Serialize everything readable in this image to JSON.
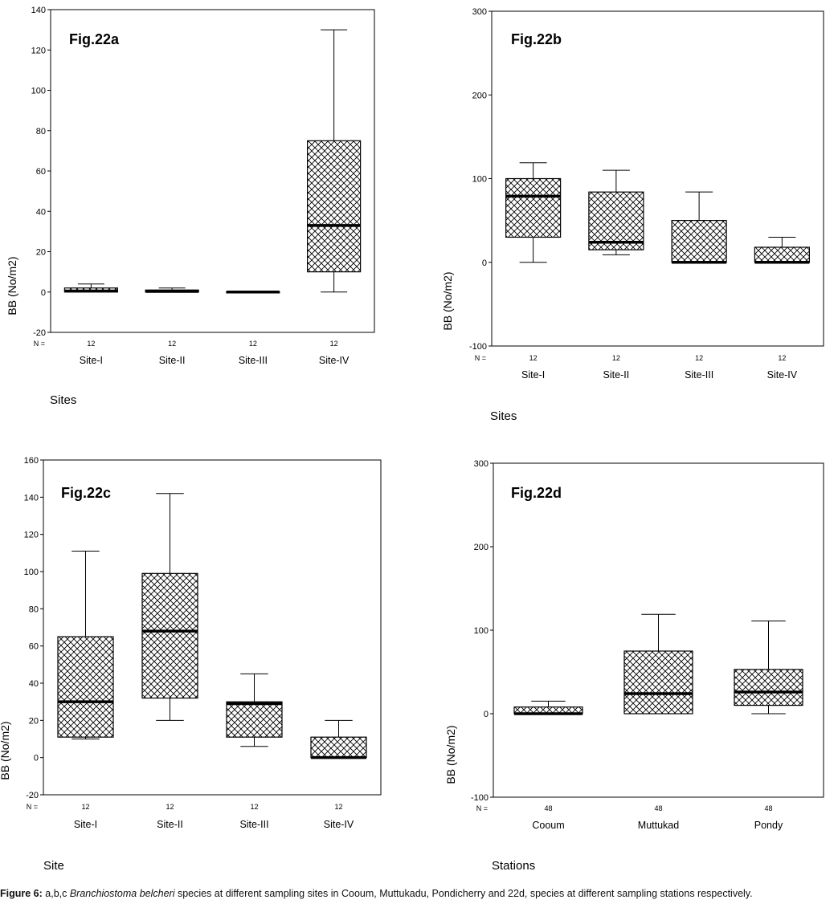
{
  "figure": {
    "caption": {
      "label": "Figure 6:",
      "part1": " a,b,c ",
      "species": "Branchiostoma belcheri",
      "part2": "  species  at different sampling sites in Cooum, Muttukadu, Pondicherry and  22d, species at different sampling stations respectively."
    }
  },
  "colors": {
    "box_fill": "#ffffff",
    "hatch": "#000000",
    "median": "#000000",
    "axis": "#000000"
  },
  "chart_data": [
    {
      "type": "boxplot",
      "title": "Fig.22a",
      "xlabel": "Sites",
      "ylabel": "BB  (No/m2)",
      "n_label": "N =",
      "ylim": [
        -20,
        140
      ],
      "yticks": [
        -20,
        0,
        20,
        40,
        60,
        80,
        100,
        120,
        140
      ],
      "categories": [
        "Site-I",
        "Site-II",
        "Site-III",
        "Site-IV"
      ],
      "n": [
        "12",
        "12",
        "12",
        "12"
      ],
      "boxes": [
        {
          "min": 0,
          "q1": 0,
          "median": 0.5,
          "q3": 2,
          "max": 4
        },
        {
          "min": 0,
          "q1": 0,
          "median": 0.3,
          "q3": 1,
          "max": 2
        },
        {
          "min": 0,
          "q1": 0,
          "median": 0,
          "q3": 0,
          "max": 0
        },
        {
          "min": 0,
          "q1": 10,
          "median": 33,
          "q3": 75,
          "max": 130
        }
      ]
    },
    {
      "type": "boxplot",
      "title": "Fig.22b",
      "xlabel": "Sites",
      "ylabel": "BB  (No/m2)",
      "n_label": "N =",
      "ylim": [
        -100,
        300
      ],
      "yticks": [
        -100,
        0,
        100,
        200,
        300
      ],
      "categories": [
        "Site-I",
        "Site-II",
        "Site-III",
        "Site-IV"
      ],
      "n": [
        "12",
        "12",
        "12",
        "12"
      ],
      "boxes": [
        {
          "min": 0,
          "q1": 30,
          "median": 79,
          "q3": 100,
          "max": 119
        },
        {
          "min": 9,
          "q1": 15,
          "median": 24,
          "q3": 84,
          "max": 110
        },
        {
          "min": 0,
          "q1": 0,
          "median": 0,
          "q3": 50,
          "max": 84
        },
        {
          "min": 0,
          "q1": 0,
          "median": 0,
          "q3": 18,
          "max": 30
        }
      ]
    },
    {
      "type": "boxplot",
      "title": "Fig.22c",
      "xlabel": "Site",
      "ylabel": "BB  (No/m2)",
      "n_label": "N =",
      "ylim": [
        -20,
        160
      ],
      "yticks": [
        -20,
        0,
        20,
        40,
        60,
        80,
        100,
        120,
        140,
        160
      ],
      "categories": [
        "Site-I",
        "Site-II",
        "Site-III",
        "Site-IV"
      ],
      "n": [
        "12",
        "12",
        "12",
        "12"
      ],
      "boxes": [
        {
          "min": 10,
          "q1": 11,
          "median": 30,
          "q3": 65,
          "max": 111
        },
        {
          "min": 20,
          "q1": 32,
          "median": 68,
          "q3": 99,
          "max": 142
        },
        {
          "min": 6,
          "q1": 11,
          "median": 29,
          "q3": 30,
          "max": 45
        },
        {
          "min": 0,
          "q1": 0,
          "median": 0,
          "q3": 11,
          "max": 20
        }
      ]
    },
    {
      "type": "boxplot",
      "title": "Fig.22d",
      "xlabel": "Stations",
      "ylabel": "BB  (No/m2)",
      "n_label": "N =",
      "ylim": [
        -100,
        300
      ],
      "yticks": [
        -100,
        0,
        100,
        200,
        300
      ],
      "categories": [
        "Cooum",
        "Muttukad",
        "Pondy"
      ],
      "n": [
        "48",
        "48",
        "48"
      ],
      "boxes": [
        {
          "min": 0,
          "q1": 0,
          "median": 0,
          "q3": 8,
          "max": 15
        },
        {
          "min": 0,
          "q1": 0,
          "median": 24,
          "q3": 75,
          "max": 119
        },
        {
          "min": 0,
          "q1": 10,
          "median": 26,
          "q3": 53,
          "max": 111
        }
      ]
    }
  ]
}
